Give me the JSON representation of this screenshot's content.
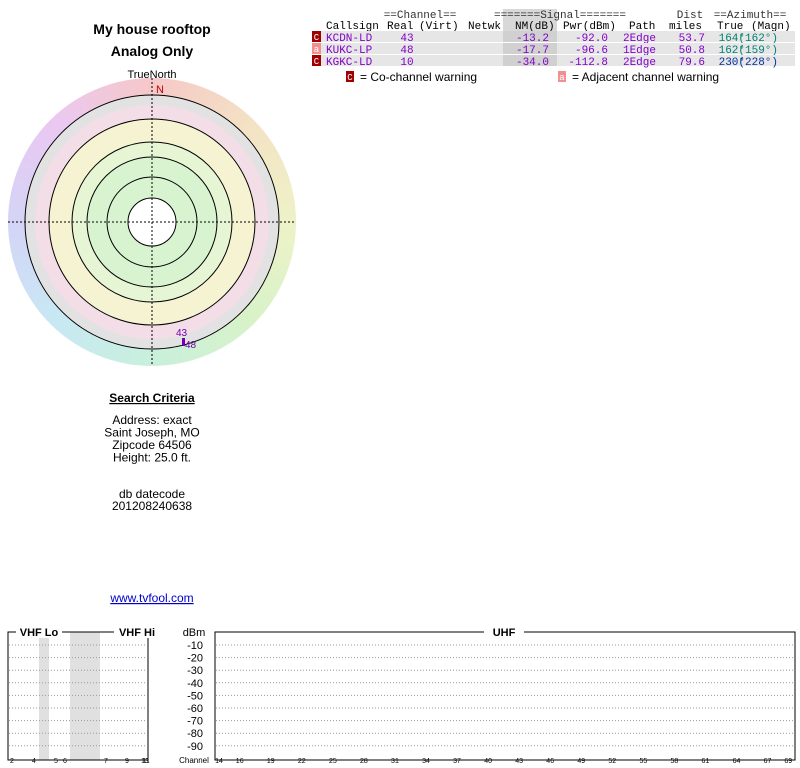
{
  "header": {
    "title": "My house rooftop",
    "subtitle": "Analog Only"
  },
  "radar": {
    "north_label": "TrueNorth",
    "north_marker": "N"
  },
  "table": {
    "group_headers": [
      "==Channel==",
      "=======Signal=======",
      "Dist",
      "==Azimuth=="
    ],
    "columns": [
      "Callsign",
      "Real",
      "(Virt)",
      "Netwk",
      "NM(dB)",
      "Pwr(dBm)",
      "Path",
      "miles",
      "True",
      "(Magn)"
    ],
    "rows": [
      {
        "warning": "C",
        "callsign": "KCDN-LD",
        "real": "43",
        "nm": "-13.2",
        "pwr": "-92.0",
        "path": "2Edge",
        "dist": "53.7",
        "true": "164°",
        "magn": "(162°)"
      },
      {
        "warning": "a",
        "callsign": "KUKC-LP",
        "real": "48",
        "nm": "-17.7",
        "pwr": "-96.6",
        "path": "1Edge",
        "dist": "50.8",
        "true": "162°",
        "magn": "(159°)"
      },
      {
        "warning": "C",
        "callsign": "KGKC-LD",
        "real": "10",
        "nm": "-34.0",
        "pwr": "-112.8",
        "path": "2Edge",
        "dist": "79.6",
        "true": "230°",
        "magn": "(228°)"
      }
    ]
  },
  "legend": [
    {
      "marker": "C",
      "text": "= Co-channel warning"
    },
    {
      "marker": "a",
      "text": "= Adjacent channel warning"
    }
  ],
  "search": {
    "heading": "Search Criteria",
    "lines": [
      "Address: exact",
      "Saint Joseph, MO",
      "Zipcode 64506",
      "Height: 25.0 ft."
    ],
    "datecode_label": "db datecode",
    "datecode": "201208240638",
    "link": "www.tvfool.com"
  },
  "spectrum": {
    "vhf_lo": "VHF Lo",
    "vhf_hi": "VHF Hi",
    "unit": "dBm",
    "levels": [
      "-10",
      "-20",
      "-30",
      "-40",
      "-50",
      "-60",
      "-70",
      "-80",
      "-90"
    ],
    "uhf": "UHF",
    "vhf_channels": [
      "2",
      "4",
      "5",
      "6",
      "7",
      "9",
      "11",
      "13"
    ],
    "channel_label": "Channel",
    "uhf_channels": [
      "14",
      "16",
      "19",
      "22",
      "25",
      "28",
      "31",
      "34",
      "37",
      "40",
      "43",
      "46",
      "49",
      "52",
      "55",
      "58",
      "61",
      "64",
      "67",
      "69"
    ]
  }
}
